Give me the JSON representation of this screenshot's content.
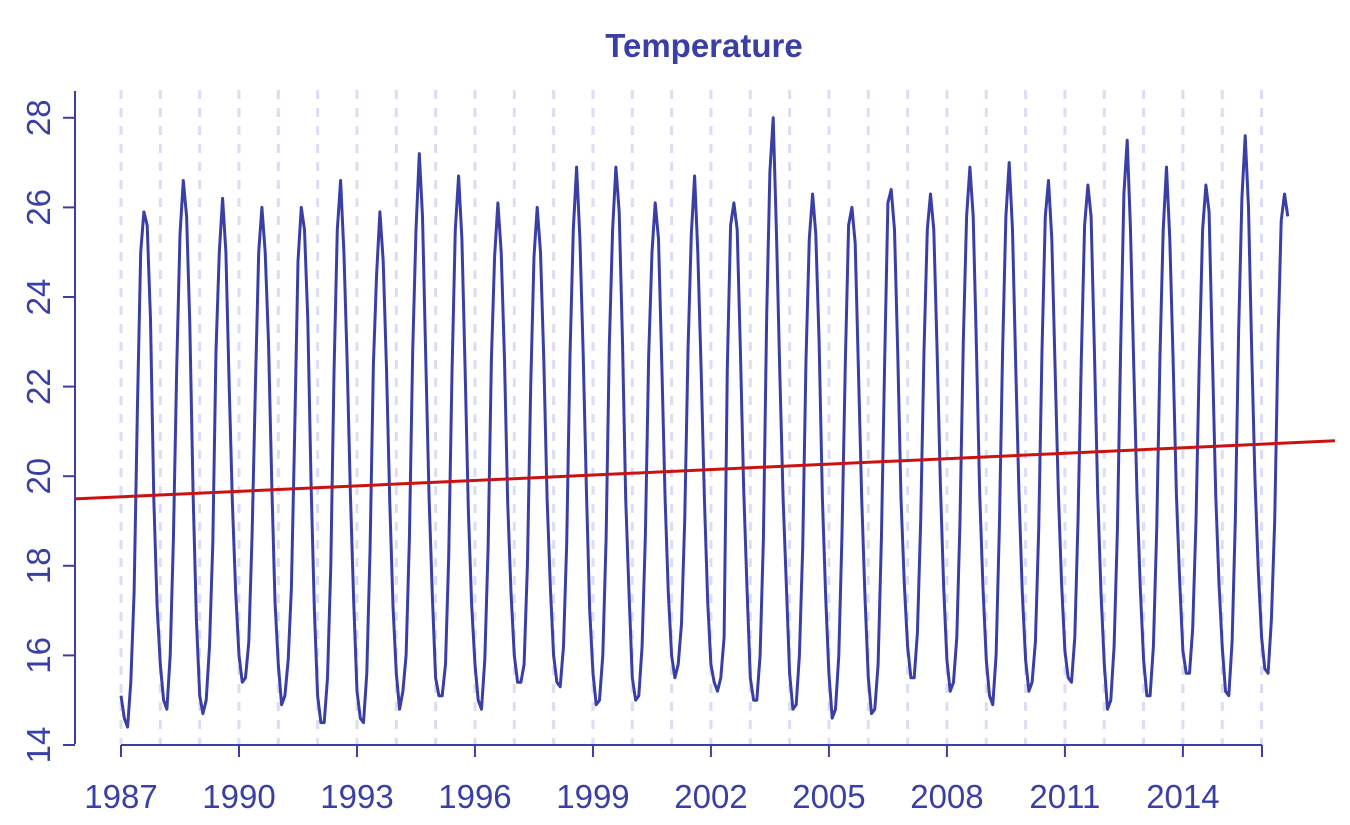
{
  "chart_data": {
    "type": "line",
    "title": "Temperature",
    "xlabel": "",
    "ylabel": "",
    "xlim": [
      1987,
      2017.1
    ],
    "ylim": [
      14,
      28.6
    ],
    "x_ticks": [
      "1987",
      "1990",
      "1993",
      "1996",
      "1999",
      "2002",
      "2005",
      "2008",
      "2011",
      "2014"
    ],
    "y_ticks": [
      "14",
      "16",
      "18",
      "20",
      "22",
      "24",
      "26",
      "28"
    ],
    "grid": "vertical dashed lines at each year",
    "series": [
      {
        "style": "monthly values",
        "color": "#3a3fa6",
        "start": "1987-01",
        "frequency": "monthly",
        "values": [
          15.1,
          14.6,
          14.4,
          15.4,
          17.4,
          21.5,
          25.0,
          25.9,
          25.6,
          23.5,
          19.5,
          17.1,
          15.8,
          15.0,
          14.8,
          16.0,
          18.6,
          22.4,
          25.4,
          26.6,
          25.8,
          23.4,
          19.6,
          16.8,
          15.1,
          14.7,
          15.0,
          16.2,
          18.5,
          22.8,
          25.0,
          26.2,
          25.0,
          22.0,
          19.4,
          17.4,
          16.0,
          15.4,
          15.5,
          16.3,
          18.7,
          22.0,
          25.0,
          26.0,
          25.0,
          23.0,
          19.8,
          17.2,
          15.8,
          14.9,
          15.1,
          15.9,
          17.5,
          21.0,
          24.8,
          26.0,
          25.5,
          23.5,
          19.8,
          17.0,
          15.1,
          14.5,
          14.5,
          15.5,
          18.0,
          22.3,
          25.5,
          26.6,
          25.0,
          22.6,
          19.6,
          17.2,
          15.2,
          14.6,
          14.5,
          15.6,
          18.4,
          22.5,
          24.5,
          25.9,
          24.8,
          22.4,
          19.4,
          17.1,
          15.6,
          14.8,
          15.2,
          16.0,
          18.6,
          22.8,
          25.5,
          27.2,
          25.8,
          22.6,
          19.5,
          17.3,
          15.5,
          15.1,
          15.1,
          15.8,
          18.2,
          22.3,
          25.5,
          26.7,
          25.3,
          22.4,
          19.2,
          17.1,
          15.8,
          15.0,
          14.8,
          15.9,
          18.4,
          22.6,
          24.9,
          26.1,
          25.0,
          22.6,
          19.4,
          17.4,
          16.0,
          15.4,
          15.4,
          15.8,
          18.0,
          22.0,
          24.9,
          26.0,
          25.0,
          22.6,
          19.5,
          17.5,
          16.0,
          15.4,
          15.3,
          16.2,
          18.5,
          22.7,
          25.5,
          26.9,
          25.3,
          22.8,
          19.7,
          17.0,
          15.6,
          14.9,
          15.0,
          16.0,
          18.6,
          22.9,
          25.5,
          26.9,
          25.9,
          23.0,
          19.5,
          17.4,
          15.5,
          15.0,
          15.1,
          16.2,
          18.7,
          22.7,
          25.0,
          26.1,
          25.3,
          22.5,
          19.5,
          17.4,
          16.0,
          15.5,
          15.8,
          16.7,
          19.0,
          22.8,
          25.4,
          26.7,
          25.0,
          22.4,
          19.5,
          17.2,
          15.8,
          15.4,
          15.2,
          15.5,
          16.4,
          22.4,
          25.6,
          26.1,
          25.5,
          22.8,
          19.7,
          17.5,
          15.5,
          15.0,
          15.0,
          16.0,
          18.6,
          23.6,
          26.8,
          28.0,
          25.4,
          22.3,
          19.5,
          17.6,
          15.6,
          14.8,
          14.9,
          16.0,
          18.4,
          22.6,
          25.3,
          26.3,
          25.4,
          23.0,
          19.5,
          17.3,
          15.6,
          14.6,
          14.8,
          16.0,
          18.7,
          22.5,
          25.6,
          26.0,
          25.2,
          22.4,
          19.5,
          17.3,
          15.5,
          14.7,
          14.8,
          15.8,
          18.6,
          22.6,
          26.1,
          26.4,
          25.5,
          22.7,
          19.5,
          17.6,
          16.2,
          15.5,
          15.5,
          16.5,
          19.0,
          22.8,
          25.5,
          26.3,
          25.5,
          22.8,
          19.8,
          17.5,
          15.9,
          15.2,
          15.4,
          16.4,
          19.0,
          23.0,
          25.8,
          26.9,
          25.8,
          22.9,
          19.6,
          17.5,
          15.9,
          15.1,
          14.9,
          16.0,
          18.9,
          22.8,
          25.8,
          27.0,
          25.5,
          22.4,
          19.6,
          17.4,
          15.9,
          15.2,
          15.4,
          16.3,
          18.8,
          22.8,
          25.8,
          26.6,
          25.3,
          22.4,
          19.6,
          17.6,
          16.1,
          15.5,
          15.4,
          16.4,
          19.0,
          22.6,
          25.6,
          26.5,
          25.8,
          22.8,
          19.6,
          17.4,
          15.8,
          14.8,
          15.0,
          16.2,
          18.8,
          22.8,
          26.3,
          27.5,
          25.5,
          22.5,
          19.6,
          17.5,
          15.9,
          15.1,
          15.1,
          16.2,
          18.8,
          22.7,
          25.5,
          26.9,
          25.3,
          22.6,
          19.6,
          17.7,
          16.1,
          15.6,
          15.6,
          16.6,
          19.0,
          22.6,
          25.5,
          26.5,
          25.9,
          22.7,
          19.6,
          17.6,
          16.2,
          15.2,
          15.1,
          16.3,
          19.0,
          23.2,
          26.2,
          27.6,
          26.0,
          22.8,
          19.9,
          17.9,
          16.4,
          15.7,
          15.6,
          16.8,
          19.0,
          23.0,
          25.7,
          26.3,
          25.8
        ]
      },
      {
        "style": "linear trend",
        "color": "#cc1111",
        "x": [
          1987,
          2017.1
        ],
        "values": [
          19.54,
          20.76
        ]
      }
    ]
  }
}
